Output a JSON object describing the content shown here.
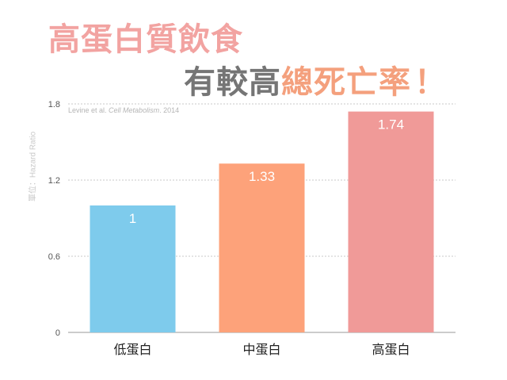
{
  "title": {
    "line1": "高蛋白質飲食",
    "line2_part1": "有較高",
    "line2_part2": "總死亡率",
    "line2_bang": "！"
  },
  "citation": {
    "authors": "Levine et al. ",
    "journal": "Cell Metabolism",
    "year": ". 2014"
  },
  "colors": {
    "title_pink": "#f2a3a1",
    "title_gray": "#757575",
    "title_orange": "#f4a07d",
    "bar_blue": "#7ecbec",
    "bar_orange": "#fda27a",
    "bar_pink": "#f09a98"
  },
  "chart_data": {
    "type": "bar",
    "title": "",
    "xlabel": "",
    "ylabel": "單位：Hazard Ratio",
    "categories": [
      "低蛋白",
      "中蛋白",
      "高蛋白"
    ],
    "values": [
      1,
      1.33,
      1.74
    ],
    "value_labels": [
      "1",
      "1.33",
      "1.74"
    ],
    "bar_colors": [
      "#7ecbec",
      "#fda27a",
      "#f09a98"
    ],
    "ylim": [
      0,
      1.8
    ],
    "yticks": [
      0,
      0.6,
      1.2,
      1.8
    ],
    "ytick_labels": [
      "0",
      "0.6",
      "1.2",
      "1.8"
    ],
    "grid": true,
    "legend": "none"
  }
}
